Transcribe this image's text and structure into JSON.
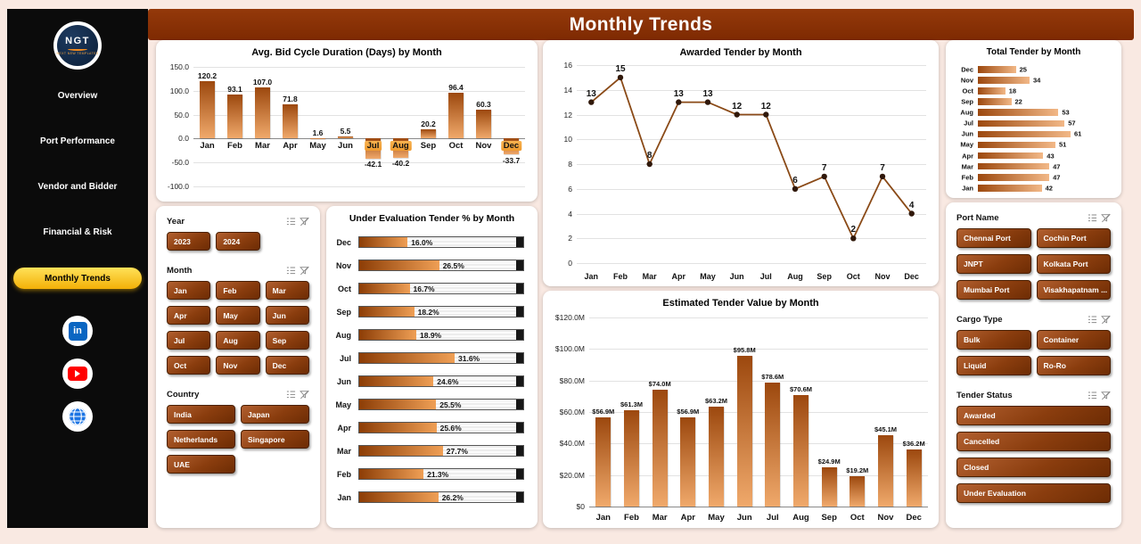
{
  "theme": {
    "page_bg": "#F9E9E2",
    "header_bg": "#7E2A02",
    "sidebar_bg": "#0B0B0B",
    "active_nav": "#F3B007",
    "bar_dark": "#9C480E",
    "bar_light": "#F0A96B",
    "line_color": "#8A4A17"
  },
  "header": {
    "title": "Monthly Trends"
  },
  "sidebar": {
    "logo": {
      "text": "NGT",
      "subtext": "NEXT NEW TEMPLATES"
    },
    "items": [
      {
        "label": "Overview"
      },
      {
        "label": "Port Performance"
      },
      {
        "label": "Vendor and Bidder"
      },
      {
        "label": "Financial & Risk"
      },
      {
        "label": "Monthly Trends",
        "active": true
      }
    ],
    "social": [
      {
        "name": "linkedin",
        "label": "in"
      },
      {
        "name": "youtube"
      },
      {
        "name": "website"
      }
    ]
  },
  "slicers": {
    "left": [
      {
        "label": "Year",
        "columns": 3,
        "options": [
          "2023",
          "2024"
        ]
      },
      {
        "label": "Month",
        "columns": 3,
        "options": [
          "Jan",
          "Feb",
          "Mar",
          "Apr",
          "May",
          "Jun",
          "Jul",
          "Aug",
          "Sep",
          "Oct",
          "Nov",
          "Dec"
        ]
      },
      {
        "label": "Country",
        "columns": 2,
        "options": [
          "India",
          "Japan",
          "Netherlands",
          "Singapore",
          "UAE"
        ]
      }
    ],
    "right": [
      {
        "label": "Port Name",
        "columns": 2,
        "options": [
          "Chennai Port",
          "Cochin Port",
          "JNPT",
          "Kolkata Port",
          "Mumbai Port",
          "Visakhapatnam ..."
        ]
      },
      {
        "label": "Cargo Type",
        "columns": 2,
        "options": [
          "Bulk",
          "Container",
          "Liquid",
          "Ro-Ro"
        ]
      },
      {
        "label": "Tender Status",
        "columns": 1,
        "options": [
          "Awarded",
          "Cancelled",
          "Closed",
          "Under Evaluation"
        ]
      }
    ]
  },
  "chart_data": [
    {
      "id": "avg_bid_cycle",
      "type": "bar",
      "title": "Avg. Bid Cycle Duration (Days) by Month",
      "categories": [
        "Jan",
        "Feb",
        "Mar",
        "Apr",
        "May",
        "Jun",
        "Jul",
        "Aug",
        "Sep",
        "Oct",
        "Nov",
        "Dec"
      ],
      "values": [
        120.2,
        93.1,
        107.0,
        71.8,
        1.6,
        5.5,
        -42.1,
        -40.2,
        20.2,
        96.4,
        60.3,
        -33.7
      ],
      "labels": [
        "120.2",
        "93.1",
        "107.0",
        "71.8",
        "1.6",
        "5.5",
        "-42.1",
        "-40.2",
        "20.2",
        "96.4",
        "60.3",
        "-33.7"
      ],
      "ylim": [
        -100,
        150
      ],
      "yticks": [
        150,
        100,
        50,
        0,
        -50,
        -100
      ],
      "ytick_labels": [
        "150.0",
        "100.0",
        "50.0",
        "0.0",
        "-50.0",
        "-100.0"
      ],
      "highlighted_categories": [
        "Jul",
        "Aug",
        "Dec"
      ],
      "xlabel": "",
      "ylabel": ""
    },
    {
      "id": "awarded_tender",
      "type": "line",
      "title": "Awarded Tender by Month",
      "categories": [
        "Jan",
        "Feb",
        "Mar",
        "Apr",
        "May",
        "Jun",
        "Jul",
        "Aug",
        "Sep",
        "Oct",
        "Nov",
        "Dec"
      ],
      "values": [
        13,
        15,
        8,
        13,
        13,
        12,
        12,
        6,
        7,
        2,
        7,
        4
      ],
      "ylim": [
        0,
        16
      ],
      "yticks": [
        16,
        14,
        12,
        10,
        8,
        6,
        4,
        2,
        0
      ],
      "xlabel": "",
      "ylabel": ""
    },
    {
      "id": "total_tender",
      "type": "bar_horizontal",
      "title": "Total Tender by Month",
      "categories": [
        "Dec",
        "Nov",
        "Oct",
        "Sep",
        "Aug",
        "Jul",
        "Jun",
        "May",
        "Apr",
        "Mar",
        "Feb",
        "Jan"
      ],
      "values": [
        25,
        34,
        18,
        22,
        53,
        57,
        61,
        51,
        43,
        47,
        47,
        42
      ],
      "xmax": 61,
      "xlabel": "",
      "ylabel": ""
    },
    {
      "id": "under_evaluation",
      "type": "bar_horizontal",
      "title": "Under Evaluation Tender % by Month",
      "categories": [
        "Dec",
        "Nov",
        "Oct",
        "Sep",
        "Aug",
        "Jul",
        "Jun",
        "May",
        "Apr",
        "Mar",
        "Feb",
        "Jan"
      ],
      "values": [
        16.0,
        26.5,
        16.7,
        18.2,
        18.9,
        31.6,
        24.6,
        25.5,
        25.6,
        27.7,
        21.3,
        26.2
      ],
      "labels": [
        "16.0%",
        "26.5%",
        "16.7%",
        "18.2%",
        "18.9%",
        "31.6%",
        "24.6%",
        "25.5%",
        "25.6%",
        "27.7%",
        "21.3%",
        "26.2%"
      ],
      "xmax": 52,
      "xlabel": "",
      "ylabel": ""
    },
    {
      "id": "estimated_value",
      "type": "bar",
      "title": "Estimated Tender Value by Month",
      "categories": [
        "Jan",
        "Feb",
        "Mar",
        "Apr",
        "May",
        "Jun",
        "Jul",
        "Aug",
        "Sep",
        "Oct",
        "Nov",
        "Dec"
      ],
      "values": [
        56.9,
        61.3,
        74.0,
        56.9,
        63.2,
        95.8,
        78.6,
        70.6,
        24.9,
        19.2,
        45.1,
        36.2
      ],
      "labels": [
        "$56.9M",
        "$61.3M",
        "$74.0M",
        "$56.9M",
        "$63.2M",
        "$95.8M",
        "$78.6M",
        "$70.6M",
        "$24.9M",
        "$19.2M",
        "$45.1M",
        "$36.2M"
      ],
      "ylim": [
        0,
        120
      ],
      "yticks": [
        120,
        100,
        80,
        60,
        40,
        20,
        0
      ],
      "ytick_labels": [
        "$120.0M",
        "$100.0M",
        "$80.0M",
        "$60.0M",
        "$40.0M",
        "$20.0M",
        "$0"
      ],
      "xlabel": "",
      "ylabel": ""
    }
  ]
}
